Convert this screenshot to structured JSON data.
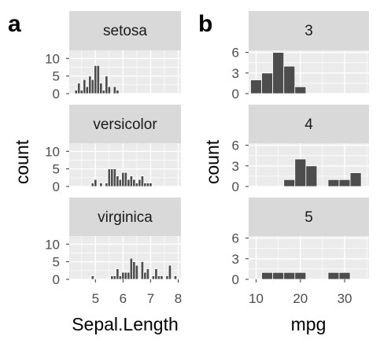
{
  "chart_data": [
    {
      "panel_label": "a",
      "type": "bar",
      "facets": [
        {
          "title": "setosa",
          "bins": [
            4.3,
            4.4,
            4.5,
            4.6,
            4.7,
            4.8,
            4.9,
            5.0,
            5.1,
            5.2,
            5.3,
            5.4,
            5.5,
            5.6,
            5.7,
            5.8
          ],
          "values": [
            1,
            3,
            1,
            4,
            2,
            5,
            4,
            8,
            8,
            3,
            1,
            5,
            2,
            0,
            2,
            1
          ]
        },
        {
          "title": "versicolor",
          "bins": [
            4.9,
            5.0,
            5.1,
            5.2,
            5.3,
            5.4,
            5.5,
            5.6,
            5.7,
            5.8,
            5.9,
            6.0,
            6.1,
            6.2,
            6.3,
            6.4,
            6.5,
            6.6,
            6.7,
            6.8,
            6.9,
            7.0
          ],
          "values": [
            1,
            2,
            0,
            1,
            0,
            1,
            5,
            5,
            5,
            3,
            2,
            4,
            4,
            2,
            3,
            2,
            1,
            2,
            3,
            1,
            1,
            1
          ]
        },
        {
          "title": "virginica",
          "bins": [
            4.9,
            5.0,
            5.1,
            5.2,
            5.3,
            5.4,
            5.5,
            5.6,
            5.7,
            5.8,
            5.9,
            6.0,
            6.1,
            6.2,
            6.3,
            6.4,
            6.5,
            6.6,
            6.7,
            6.8,
            6.9,
            7.0,
            7.1,
            7.2,
            7.3,
            7.4,
            7.5,
            7.6,
            7.7,
            7.8,
            7.9
          ],
          "values": [
            1,
            0,
            0,
            0,
            0,
            0,
            0,
            1,
            1,
            3,
            1,
            2,
            2,
            2,
            6,
            5,
            4,
            0,
            5,
            2,
            3,
            0,
            1,
            3,
            1,
            1,
            0,
            1,
            4,
            0,
            1
          ]
        }
      ],
      "bin_width": 0.1,
      "xlabel": "Sepal.Length",
      "ylabel": "count",
      "xlim": [
        4.05,
        8.1
      ],
      "ylim": [
        0,
        12.3
      ],
      "xticks": [
        5,
        6,
        7,
        8
      ],
      "yticks": [
        0,
        5,
        10
      ],
      "grid": true
    },
    {
      "panel_label": "b",
      "type": "bar",
      "facets": [
        {
          "title": "3",
          "bins": [
            10,
            12.5,
            15,
            17.5,
            20
          ],
          "values": [
            2,
            3,
            6,
            4,
            1
          ]
        },
        {
          "title": "4",
          "bins": [
            17.5,
            20,
            22.5,
            25,
            27.5,
            30,
            32.5
          ],
          "values": [
            1,
            4,
            3,
            0,
            1,
            1,
            2
          ]
        },
        {
          "title": "5",
          "bins": [
            12.5,
            15,
            17.5,
            20,
            22.5,
            25,
            27.5,
            30,
            32.5
          ],
          "values": [
            1,
            1,
            1,
            1,
            0,
            0,
            1,
            1,
            0
          ]
        }
      ],
      "bin_width": 2.5,
      "xlabel": "mpg",
      "ylabel": "count",
      "xlim": [
        8.3,
        35.5
      ],
      "ylim": [
        0,
        6.3
      ],
      "xticks": [
        10,
        20,
        30
      ],
      "yticks": [
        0,
        3,
        6
      ],
      "grid": true
    }
  ],
  "colors": {
    "panel_background": "#ebebeb",
    "grid": "#ffffff",
    "strip_background": "#d9d9d9",
    "bar_fill": "#4d4d4d",
    "bar_outline": "#ffffff",
    "tick_text": "#4d4d4d"
  }
}
